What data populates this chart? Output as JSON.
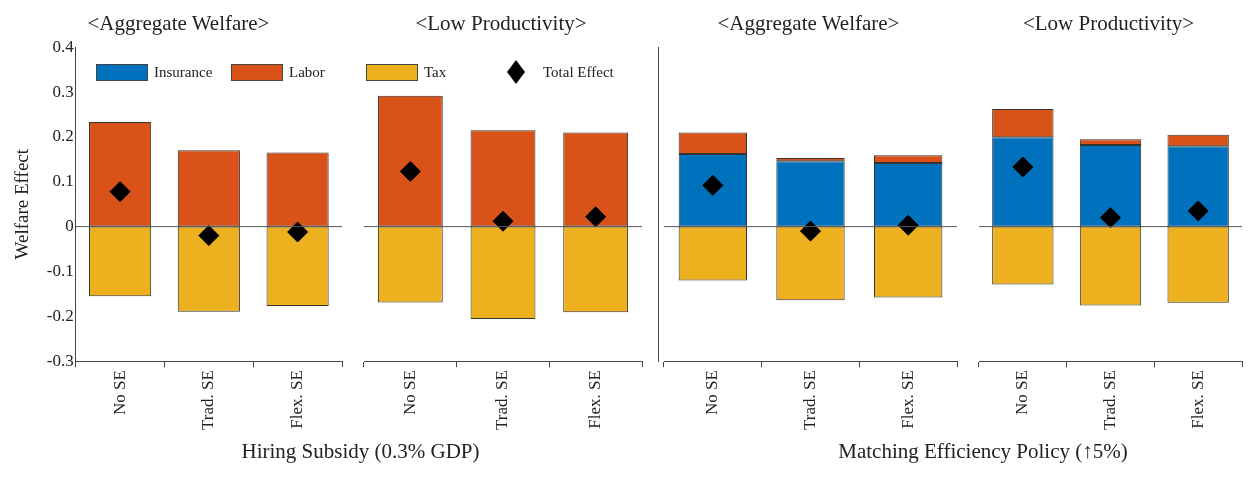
{
  "chart_data": [
    {
      "type": "bar",
      "title": "<Aggregate Welfare>",
      "ylabel": "Welfare Effect",
      "xlabel": "Hiring Subsidy (0.3% GDP)",
      "categories": [
        "No SE",
        "Trad. SE",
        "Flex. SE"
      ],
      "stacked": true,
      "ylim": [
        -0.3,
        0.4
      ],
      "yticks": [
        -0.3,
        -0.2,
        -0.1,
        0,
        0.1,
        0.2,
        0.3,
        0.4
      ],
      "legend": "top",
      "marker": "diamond",
      "ref_lines": [
        {
          "axis": "y",
          "value": 0
        }
      ],
      "series": [
        {
          "name": "Insurance",
          "color": "#0072bd",
          "values": [
            0,
            0,
            0
          ]
        },
        {
          "name": "Labor",
          "color": "#d95319",
          "values": [
            0.233,
            0.17,
            0.165
          ]
        },
        {
          "name": "Tax",
          "color": "#edb120",
          "values": [
            -0.155,
            -0.19,
            -0.177
          ]
        },
        {
          "name": "Total Effect",
          "type": "scatter",
          "color": "#000000",
          "x": [
            "No SE",
            "Trad. SE",
            "Flex. SE"
          ],
          "values": [
            0.078,
            -0.02,
            -0.012
          ]
        }
      ]
    },
    {
      "type": "bar",
      "title": "<Low Productivity>",
      "categories": [
        "No SE",
        "Trad. SE",
        "Flex. SE"
      ],
      "stacked": true,
      "ylim": [
        -0.3,
        0.4
      ],
      "tick_labels": "x",
      "marker": "diamond",
      "ref_lines": [
        {
          "axis": "y",
          "value": 0
        }
      ],
      "series": [
        {
          "color": "#0072bd",
          "values": [
            0,
            0,
            0
          ]
        },
        {
          "color": "#d95319",
          "values": [
            0.292,
            0.215,
            0.21
          ]
        },
        {
          "color": "#edb120",
          "values": [
            -0.169,
            -0.206,
            -0.191
          ]
        },
        {
          "type": "scatter",
          "color": "#000000",
          "x": [
            "No SE",
            "Trad. SE",
            "Flex. SE"
          ],
          "values": [
            0.123,
            0.012,
            0.022
          ]
        }
      ]
    },
    {
      "type": "bar",
      "title": "<Aggregate Welfare>",
      "xlabel": "Matching Efficiency Policy (↑5%)",
      "categories": [
        "No SE",
        "Trad. SE",
        "Flex. SE"
      ],
      "stacked": true,
      "ylim": [
        -0.3,
        0.4
      ],
      "yticks": [
        -0.3,
        -0.2,
        -0.1,
        0,
        0.1,
        0.2,
        0.3,
        0.4
      ],
      "tick_labels": "x",
      "marker": "diamond",
      "ref_lines": [
        {
          "axis": "y",
          "value": 0
        }
      ],
      "series": [
        {
          "color": "#0072bd",
          "values": [
            0.162,
            0.146,
            0.142
          ]
        },
        {
          "color": "#d95319",
          "values": [
            0.048,
            0.007,
            0.017
          ]
        },
        {
          "color": "#edb120",
          "values": [
            -0.12,
            -0.164,
            -0.158
          ]
        },
        {
          "type": "scatter",
          "color": "#000000",
          "x": [
            "No SE",
            "Trad. SE",
            "Flex. SE"
          ],
          "values": [
            0.092,
            -0.01,
            0.003
          ]
        }
      ]
    },
    {
      "type": "bar",
      "title": "<Low Productivity>",
      "categories": [
        "No SE",
        "Trad. SE",
        "Flex. SE"
      ],
      "stacked": true,
      "ylim": [
        -0.3,
        0.4
      ],
      "tick_labels": "x",
      "marker": "diamond",
      "ref_lines": [
        {
          "axis": "y",
          "value": 0
        }
      ],
      "series": [
        {
          "color": "#0072bd",
          "values": [
            0.199,
            0.182,
            0.179
          ]
        },
        {
          "color": "#d95319",
          "values": [
            0.063,
            0.013,
            0.026
          ]
        },
        {
          "color": "#edb120",
          "values": [
            -0.129,
            -0.176,
            -0.17
          ]
        },
        {
          "type": "scatter",
          "color": "#000000",
          "x": [
            "No SE",
            "Trad. SE",
            "Flex. SE"
          ],
          "values": [
            0.133,
            0.02,
            0.035
          ]
        }
      ]
    }
  ]
}
